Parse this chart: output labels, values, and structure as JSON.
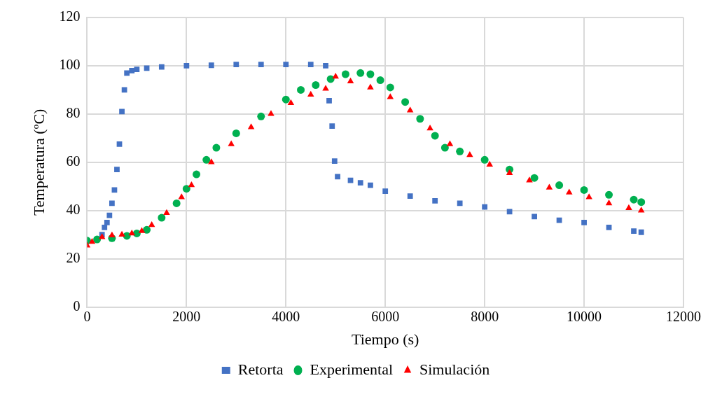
{
  "chart_data": {
    "type": "scatter",
    "xlabel": "Tiempo (s)",
    "ylabel": "Temperatura (ºC)",
    "xlim": [
      0,
      12000
    ],
    "xticks": [
      0,
      2000,
      4000,
      6000,
      8000,
      10000,
      12000
    ],
    "ylim": [
      0,
      120
    ],
    "yticks": [
      0,
      20,
      40,
      60,
      80,
      100,
      120
    ],
    "grid": true,
    "legend": "bottom",
    "series": [
      {
        "name": "Retorta",
        "color": "#4472c4",
        "marker": "square",
        "x": [
          300,
          350,
          400,
          450,
          500,
          550,
          600,
          650,
          700,
          750,
          800,
          900,
          1000,
          1200,
          1500,
          2000,
          2500,
          3000,
          3500,
          4000,
          4500,
          4800,
          4870,
          4930,
          4980,
          5040,
          5300,
          5500,
          5700,
          6000,
          6500,
          7000,
          7500,
          8000,
          8500,
          9000,
          9500,
          10000,
          10500,
          11000,
          11150
        ],
        "values": [
          30,
          33,
          35,
          38,
          43,
          48.5,
          57,
          67.5,
          81,
          90,
          97,
          98,
          98.5,
          99,
          99.5,
          100,
          100.2,
          100.5,
          100.5,
          100.5,
          100.5,
          100,
          85.5,
          75,
          60.5,
          54,
          52.5,
          51.5,
          50.5,
          48,
          46,
          44,
          43,
          41.5,
          39.5,
          37.5,
          36,
          35,
          33,
          31.5,
          31
        ]
      },
      {
        "name": "Experimental",
        "color": "#00b050",
        "marker": "circle",
        "x": [
          0,
          200,
          500,
          800,
          1000,
          1200,
          1500,
          1800,
          2000,
          2200,
          2400,
          2600,
          3000,
          3500,
          4000,
          4300,
          4600,
          4900,
          5200,
          5500,
          5700,
          5900,
          6100,
          6400,
          6700,
          7000,
          7200,
          7500,
          8000,
          8500,
          9000,
          9500,
          10000,
          10500,
          11000,
          11150
        ],
        "values": [
          27.5,
          28,
          28.5,
          29.5,
          30.5,
          32,
          37,
          43,
          49,
          55,
          61,
          66,
          72,
          79,
          86,
          90,
          92,
          94.5,
          96.5,
          97,
          96.5,
          94,
          91,
          85,
          78,
          71,
          66,
          64.5,
          61,
          57,
          53.5,
          50.5,
          48.5,
          46.5,
          44.5,
          43.5
        ]
      },
      {
        "name": "Simulación",
        "color": "#ff0000",
        "marker": "triangle",
        "x": [
          0,
          100,
          300,
          500,
          700,
          900,
          1100,
          1300,
          1600,
          1900,
          2100,
          2500,
          2900,
          3300,
          3700,
          4100,
          4500,
          4800,
          5000,
          5300,
          5700,
          6100,
          6500,
          6900,
          7300,
          7700,
          8100,
          8500,
          8900,
          9300,
          9700,
          10100,
          10500,
          10900,
          11150
        ],
        "values": [
          25.5,
          27,
          29,
          29.7,
          30,
          30.5,
          31.5,
          34,
          39,
          45.5,
          50.5,
          60,
          67.5,
          74.5,
          80,
          84.5,
          88,
          90.5,
          95.5,
          93.5,
          91,
          87,
          81.5,
          74,
          67.5,
          63,
          59,
          55.5,
          52.5,
          49.5,
          47.5,
          45.5,
          43,
          41,
          40
        ]
      }
    ]
  }
}
